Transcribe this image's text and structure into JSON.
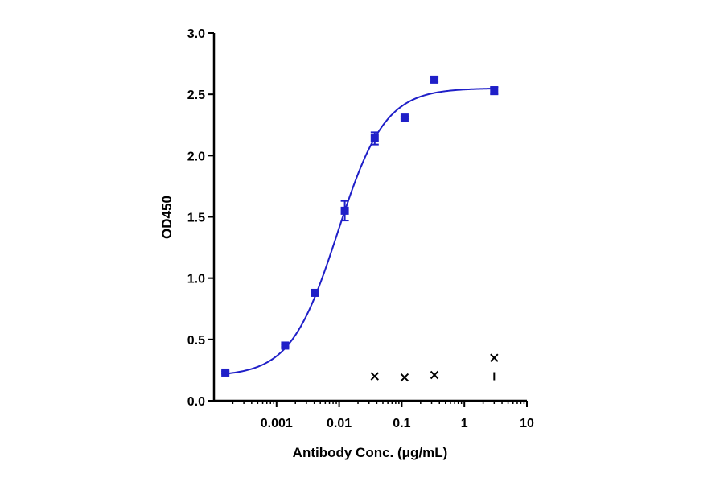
{
  "chart_data": {
    "type": "scatter",
    "x_scale": "log",
    "x_ticks": [
      0.001,
      0.01,
      0.1,
      1,
      10
    ],
    "x_tick_labels": [
      "0.001",
      "0.01",
      "0.1",
      "1",
      "10"
    ],
    "y_ticks": [
      0.0,
      0.5,
      1.0,
      1.5,
      2.0,
      2.5,
      3.0
    ],
    "y_tick_labels": [
      "0.0",
      "0.5",
      "1.0",
      "1.5",
      "2.0",
      "2.5",
      "3.0"
    ],
    "xlim": [
      0.0001,
      10
    ],
    "ylim": [
      0,
      3
    ],
    "xlabel": "Antibody Conc. (μg/mL)",
    "ylabel": "OD450",
    "grid": false,
    "colors": {
      "series": "#1f1fc8",
      "control": "#000000"
    },
    "series": [
      {
        "marker": "square",
        "points": [
          {
            "x": 0.000152,
            "y": 0.23,
            "err": 0.01
          },
          {
            "x": 0.00137,
            "y": 0.45,
            "err": 0.01
          },
          {
            "x": 0.00412,
            "y": 0.88,
            "err": 0.01
          },
          {
            "x": 0.0123,
            "y": 1.55,
            "err": 0.08
          },
          {
            "x": 0.037,
            "y": 2.14,
            "err": 0.05
          },
          {
            "x": 0.111,
            "y": 2.31,
            "err": 0.01
          },
          {
            "x": 0.333,
            "y": 2.62,
            "err": 0.02
          },
          {
            "x": 3.0,
            "y": 2.53,
            "err": 0.03
          }
        ],
        "fit": {
          "model": "4PL",
          "bottom": 0.2,
          "top": 2.55,
          "ec50": 0.0095,
          "hill": 1.15
        }
      },
      {
        "marker": "x",
        "points": [
          {
            "x": 0.037,
            "y": 0.2
          },
          {
            "x": 0.111,
            "y": 0.19
          },
          {
            "x": 0.333,
            "y": 0.21
          },
          {
            "x": 3.0,
            "y": 0.35
          }
        ]
      }
    ],
    "extra_marks": [
      {
        "x": 3.0,
        "y": 0.2,
        "marker": "dash"
      }
    ]
  }
}
